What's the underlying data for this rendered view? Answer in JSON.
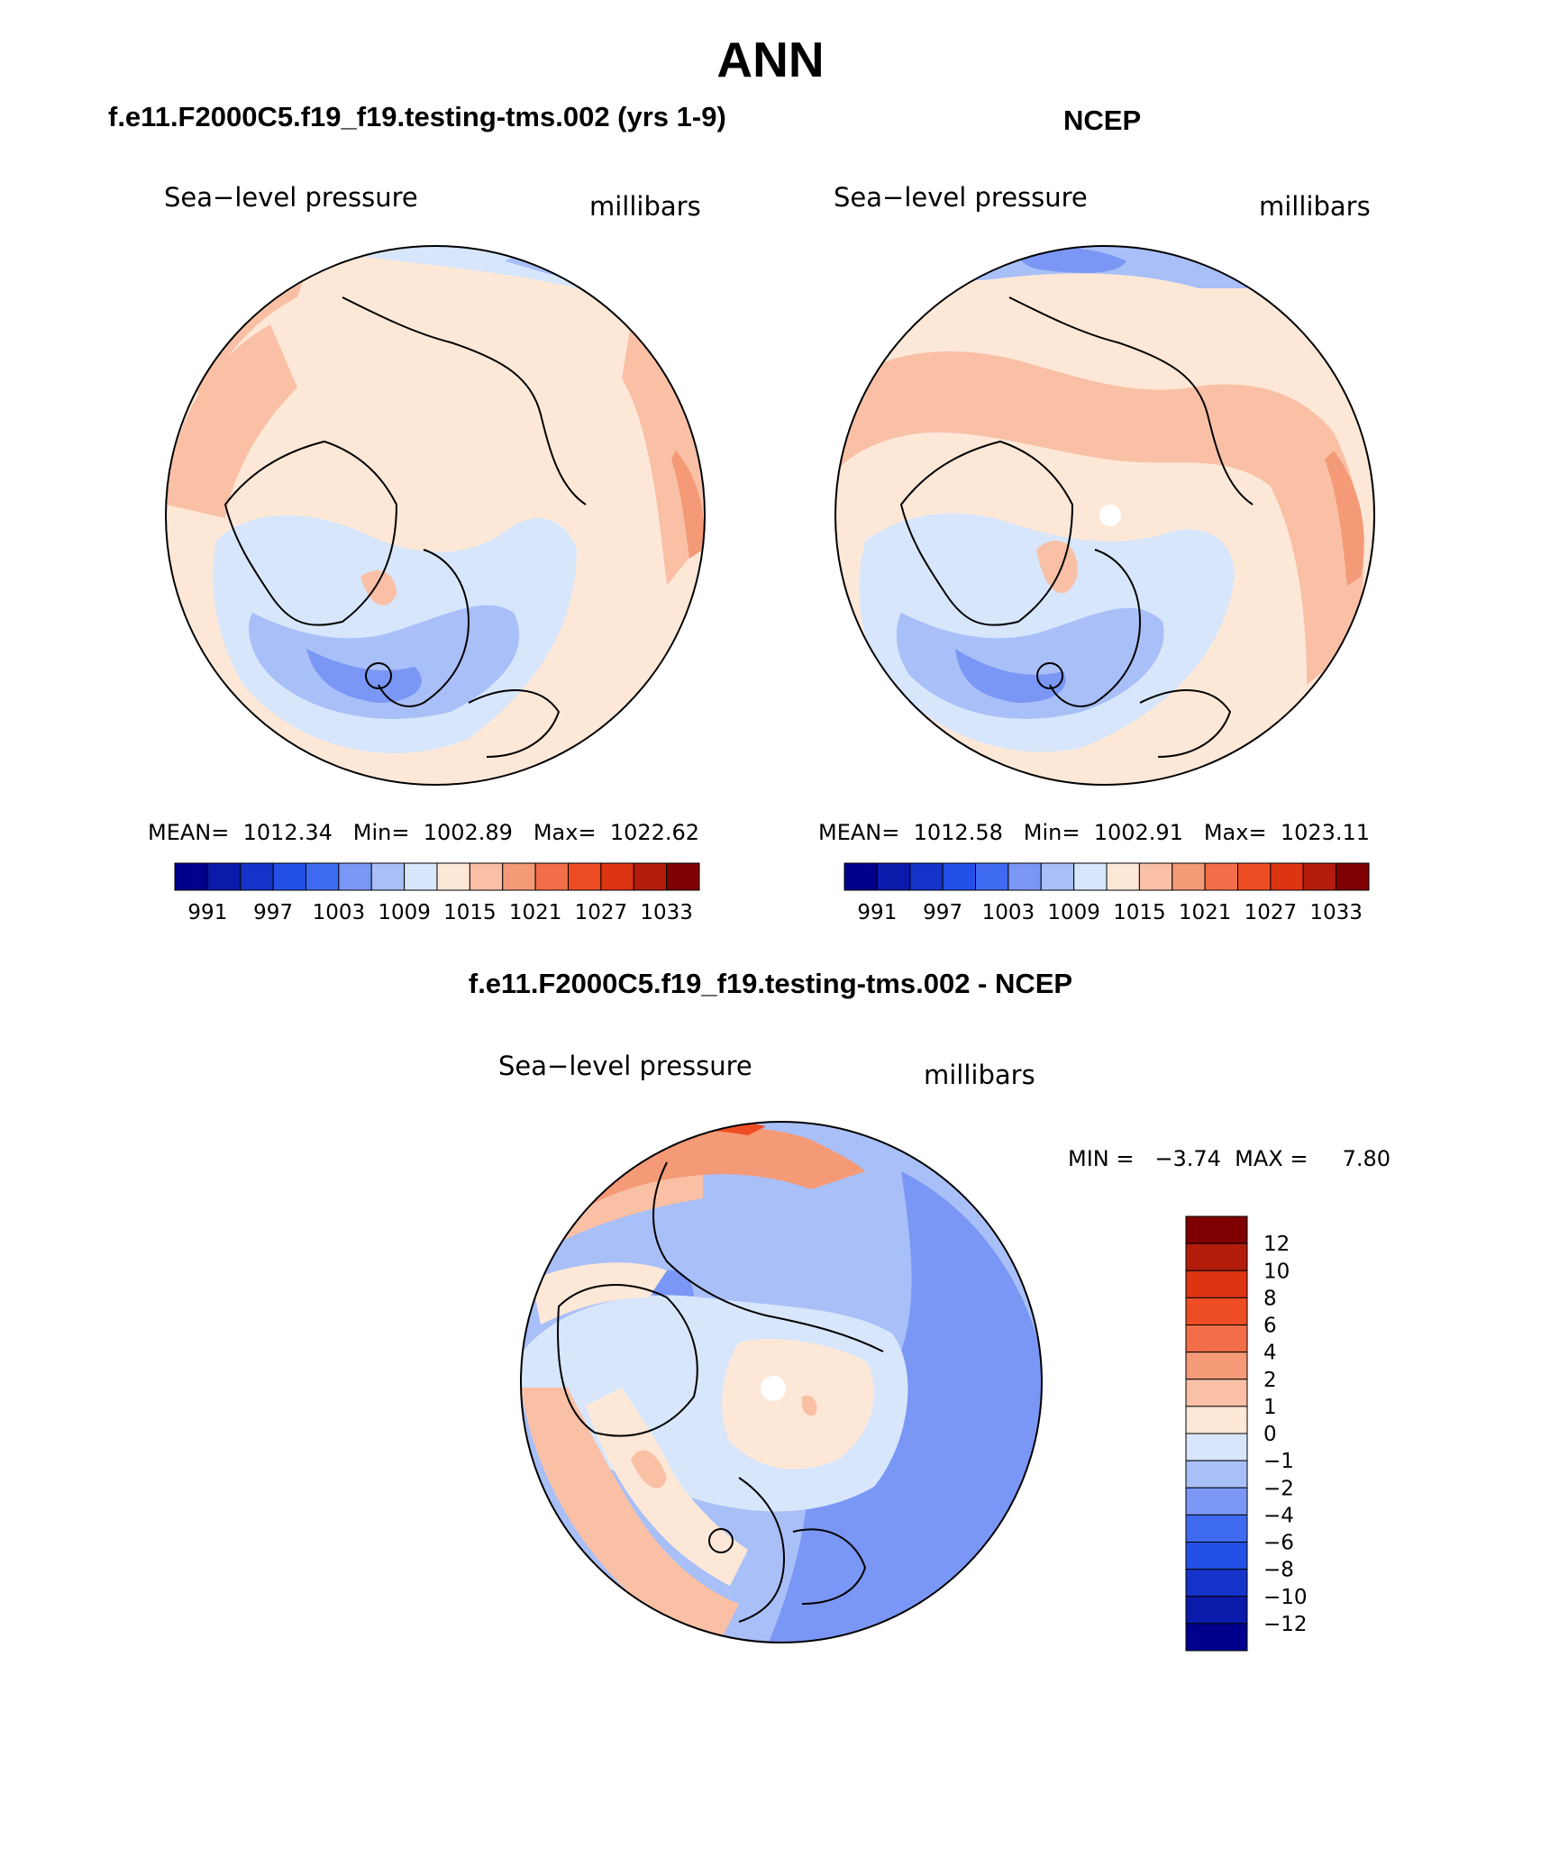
{
  "page": {
    "title": "ANN"
  },
  "colors": {
    "ocean_outline": "#000000",
    "land_outline": "#000000",
    "palette": [
      "#00008c",
      "#0a1aab",
      "#1532c9",
      "#2350e6",
      "#3f6bf2",
      "#7a97f5",
      "#a9bff8",
      "#d7e6fb",
      "#fde8d8",
      "#f9c0a6",
      "#f49a77",
      "#f26e48",
      "#ee4d23",
      "#dd3412",
      "#b31c0b",
      "#7f0000"
    ]
  },
  "panels": {
    "model": {
      "header": "f.e11.F2000C5.f19_f19.testing-tms.002 (yrs 1-9)",
      "field": "Sea−level pressure",
      "units": "millibars",
      "stats": "MEAN=  1012.34   Min=  1002.89   Max=  1022.62",
      "colorbar_ticks": [
        "991",
        "997",
        "1003",
        "1009",
        "1015",
        "1021",
        "1027",
        "1033"
      ]
    },
    "obs": {
      "header": "NCEP",
      "field": "Sea−level pressure",
      "units": "millibars",
      "stats": "MEAN=  1012.58   Min=  1002.91   Max=  1023.11",
      "colorbar_ticks": [
        "991",
        "997",
        "1003",
        "1009",
        "1015",
        "1021",
        "1027",
        "1033"
      ]
    },
    "diff": {
      "header": "f.e11.F2000C5.f19_f19.testing-tms.002 - NCEP",
      "field": "Sea−level pressure",
      "units": "millibars",
      "stats": "MIN =   −3.74  MAX =     7.80",
      "colorbar_ticks": [
        "12",
        "10",
        "8",
        "6",
        "4",
        "2",
        "1",
        "0",
        "−1",
        "−2",
        "−4",
        "−6",
        "−8",
        "−10",
        "−12"
      ]
    }
  }
}
